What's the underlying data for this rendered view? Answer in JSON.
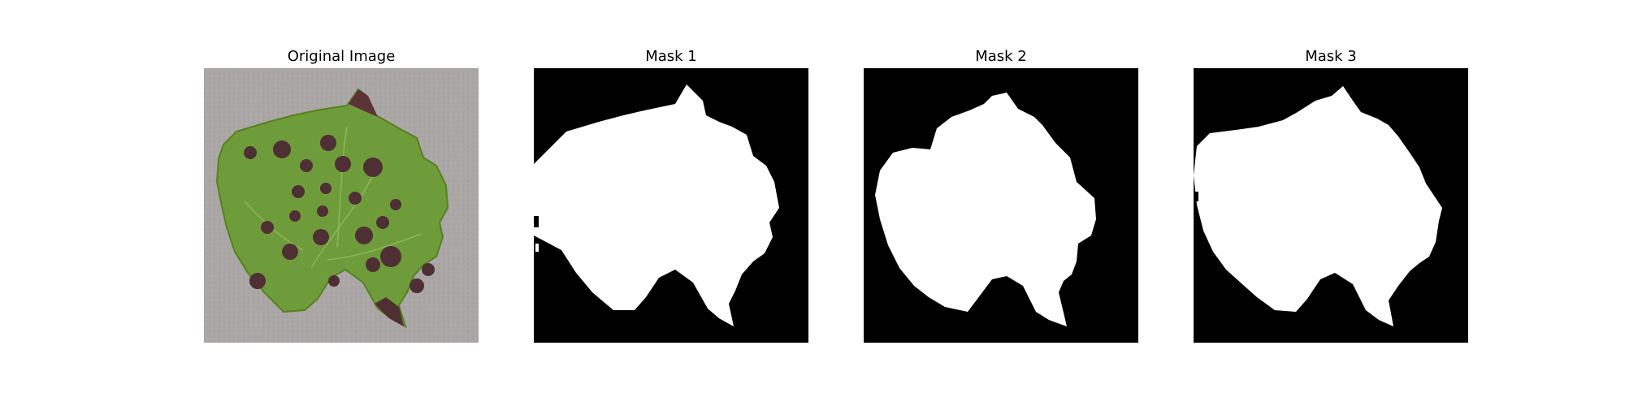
{
  "panels": [
    {
      "title": "Original Image"
    },
    {
      "title": "Mask 1"
    },
    {
      "title": "Mask 2"
    },
    {
      "title": "Mask 3"
    }
  ],
  "colors": {
    "background": "#ffffff",
    "mask_background": "#000000",
    "mask_foreground": "#ffffff",
    "surface_gray": "#a9a6a5",
    "leaf_green": "#6f9c3a",
    "lesion_brown": "#4e2f34"
  }
}
